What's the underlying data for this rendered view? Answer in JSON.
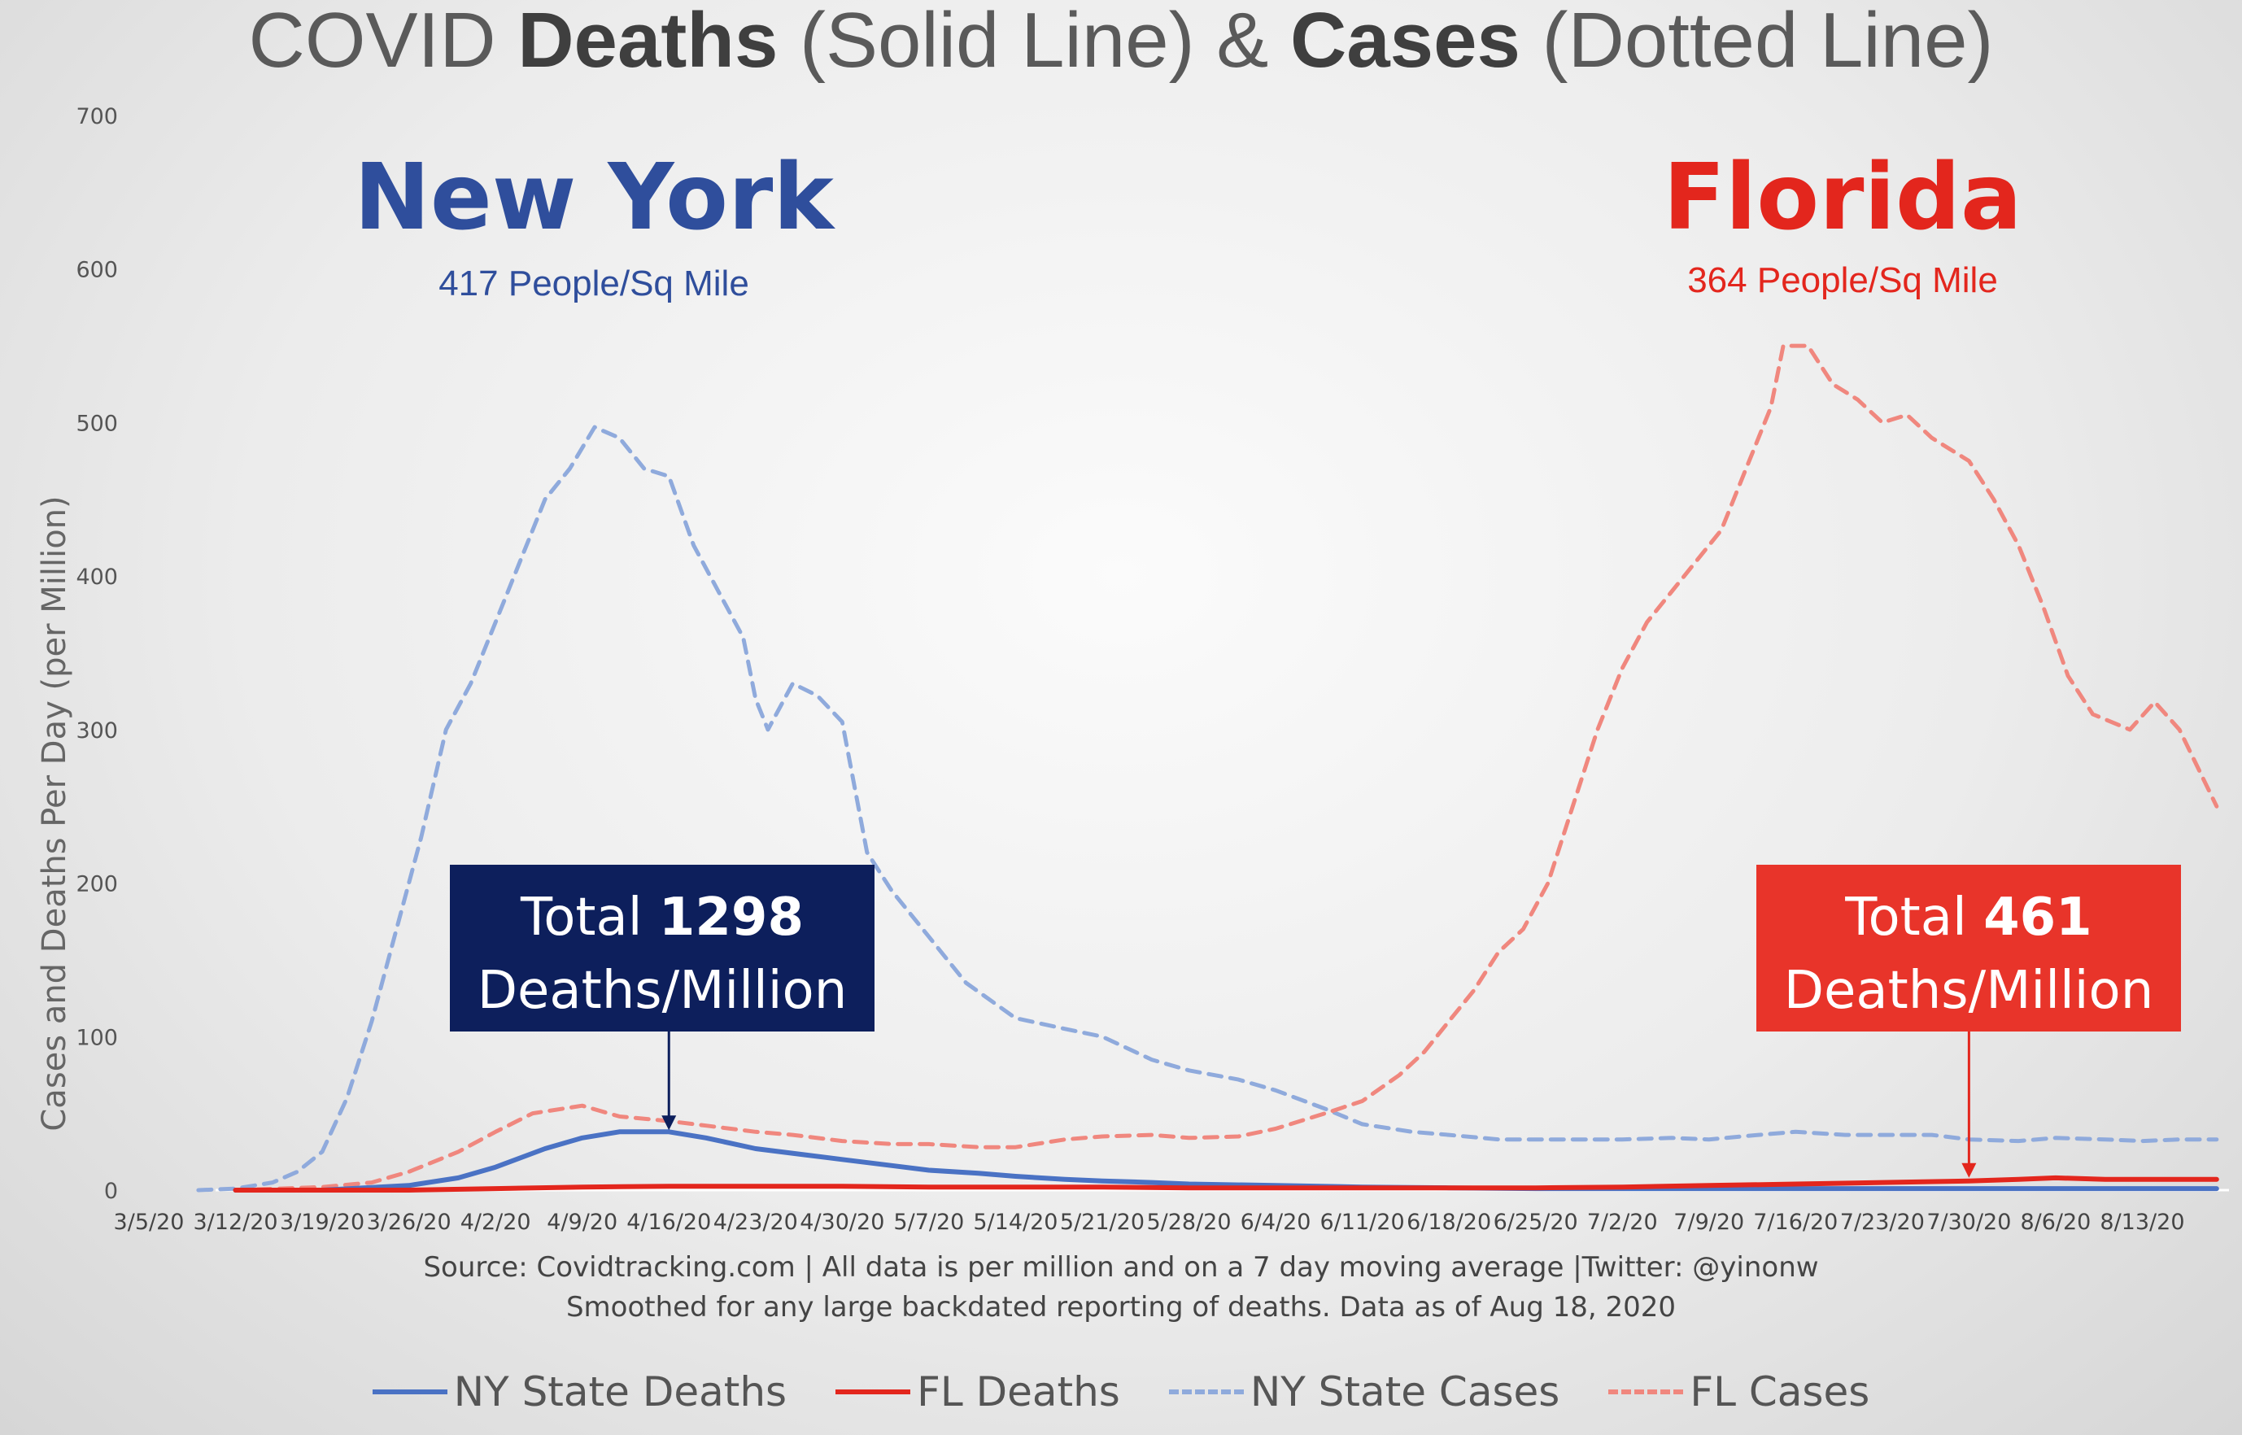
{
  "title": {
    "part1": "COVID ",
    "bold1": "Deaths",
    "part2": " (Solid Line) & ",
    "bold2": "Cases",
    "part3": " (Dotted Line)"
  },
  "annotations": {
    "ny": {
      "name": "New York",
      "density": "417 People/Sq Mile",
      "total_prefix": "Total ",
      "total_value": "1298",
      "total_suffix": "Deaths/Million",
      "color": "#2f4e9c",
      "box_color": "#0d1f5c"
    },
    "fl": {
      "name": "Florida",
      "density": "364 People/Sq Mile",
      "total_prefix": "Total ",
      "total_value": "461",
      "total_suffix": "Deaths/Million",
      "color": "#e3261d",
      "box_color": "#e8342a"
    }
  },
  "source": {
    "line1": "Source: Covidtracking.com | All data is per million and on a 7 day moving average |Twitter: @yinonw",
    "line2": "Smoothed for any large backdated reporting of deaths. Data as of Aug 18, 2020"
  },
  "chart_data": {
    "type": "line",
    "title": "COVID Deaths (Solid Line) & Cases (Dotted Line)",
    "ylabel": "Cases and Deaths Per Day (per Million)",
    "xlabel": "",
    "ylim": [
      0,
      700
    ],
    "yticks": [
      0,
      100,
      200,
      300,
      400,
      500,
      600,
      700
    ],
    "x_range": [
      "3/5/20",
      "8/20/20"
    ],
    "xticks": [
      "3/5/20",
      "3/12/20",
      "3/19/20",
      "3/26/20",
      "4/2/20",
      "4/9/20",
      "4/16/20",
      "4/23/20",
      "4/30/20",
      "5/7/20",
      "5/14/20",
      "5/21/20",
      "5/28/20",
      "6/4/20",
      "6/11/20",
      "6/18/20",
      "6/25/20",
      "7/2/20",
      "7/9/20",
      "7/16/20",
      "7/23/20",
      "7/30/20",
      "8/6/20",
      "8/13/20"
    ],
    "grid": false,
    "legend": "bottom",
    "series": [
      {
        "name": "NY State Deaths",
        "style": "solid",
        "color": "#4a72c4",
        "points": [
          [
            "3/12/20",
            0
          ],
          [
            "3/19/20",
            0
          ],
          [
            "3/26/20",
            3
          ],
          [
            "3/30/20",
            8
          ],
          [
            "4/2/20",
            15
          ],
          [
            "4/6/20",
            27
          ],
          [
            "4/9/20",
            34
          ],
          [
            "4/12/20",
            38
          ],
          [
            "4/16/20",
            38
          ],
          [
            "4/19/20",
            34
          ],
          [
            "4/23/20",
            27
          ],
          [
            "4/27/20",
            23
          ],
          [
            "4/30/20",
            20
          ],
          [
            "5/4/20",
            16
          ],
          [
            "5/7/20",
            13
          ],
          [
            "5/11/20",
            11
          ],
          [
            "5/14/20",
            9
          ],
          [
            "5/18/20",
            7
          ],
          [
            "5/21/20",
            6
          ],
          [
            "5/25/20",
            5
          ],
          [
            "5/28/20",
            4
          ],
          [
            "6/4/20",
            3
          ],
          [
            "6/11/20",
            2
          ],
          [
            "6/18/20",
            1.5
          ],
          [
            "6/25/20",
            1
          ],
          [
            "7/2/20",
            1
          ],
          [
            "7/9/20",
            1
          ],
          [
            "7/16/20",
            1
          ],
          [
            "7/23/20",
            1
          ],
          [
            "7/30/20",
            1
          ],
          [
            "8/6/20",
            1
          ],
          [
            "8/13/20",
            1
          ],
          [
            "8/19/20",
            1
          ]
        ]
      },
      {
        "name": "FL Deaths",
        "style": "solid",
        "color": "#e3261d",
        "points": [
          [
            "3/12/20",
            0
          ],
          [
            "3/26/20",
            0
          ],
          [
            "4/2/20",
            1
          ],
          [
            "4/9/20",
            2
          ],
          [
            "4/16/20",
            2.5
          ],
          [
            "4/23/20",
            2.5
          ],
          [
            "4/30/20",
            2.5
          ],
          [
            "5/7/20",
            2
          ],
          [
            "5/14/20",
            2
          ],
          [
            "5/21/20",
            2
          ],
          [
            "5/28/20",
            1.5
          ],
          [
            "6/4/20",
            1.5
          ],
          [
            "6/11/20",
            1.5
          ],
          [
            "6/18/20",
            1.5
          ],
          [
            "6/25/20",
            1.5
          ],
          [
            "7/2/20",
            2
          ],
          [
            "7/9/20",
            3
          ],
          [
            "7/16/20",
            4
          ],
          [
            "7/23/20",
            5
          ],
          [
            "7/30/20",
            6
          ],
          [
            "8/3/20",
            7
          ],
          [
            "8/6/20",
            8
          ],
          [
            "8/10/20",
            7
          ],
          [
            "8/13/20",
            7
          ],
          [
            "8/19/20",
            7
          ]
        ]
      },
      {
        "name": "NY State Cases",
        "style": "dashed",
        "color": "#8faadc",
        "points": [
          [
            "3/9/20",
            0
          ],
          [
            "3/12/20",
            1
          ],
          [
            "3/15/20",
            5
          ],
          [
            "3/17/20",
            12
          ],
          [
            "3/19/20",
            25
          ],
          [
            "3/21/20",
            60
          ],
          [
            "3/23/20",
            110
          ],
          [
            "3/25/20",
            170
          ],
          [
            "3/27/20",
            230
          ],
          [
            "3/29/20",
            300
          ],
          [
            "3/31/20",
            330
          ],
          [
            "4/2/20",
            370
          ],
          [
            "4/4/20",
            410
          ],
          [
            "4/6/20",
            450
          ],
          [
            "4/8/20",
            470
          ],
          [
            "4/10/20",
            497
          ],
          [
            "4/12/20",
            490
          ],
          [
            "4/14/20",
            470
          ],
          [
            "4/16/20",
            465
          ],
          [
            "4/18/20",
            420
          ],
          [
            "4/20/20",
            390
          ],
          [
            "4/22/20",
            360
          ],
          [
            "4/23/20",
            320
          ],
          [
            "4/24/20",
            300
          ],
          [
            "4/26/20",
            330
          ],
          [
            "4/28/20",
            322
          ],
          [
            "4/30/20",
            305
          ],
          [
            "5/2/20",
            220
          ],
          [
            "5/4/20",
            195
          ],
          [
            "5/7/20",
            165
          ],
          [
            "5/10/20",
            135
          ],
          [
            "5/14/20",
            112
          ],
          [
            "5/18/20",
            105
          ],
          [
            "5/21/20",
            100
          ],
          [
            "5/25/20",
            85
          ],
          [
            "5/28/20",
            78
          ],
          [
            "6/1/20",
            72
          ],
          [
            "6/4/20",
            65
          ],
          [
            "6/8/20",
            53
          ],
          [
            "6/11/20",
            43
          ],
          [
            "6/15/20",
            38
          ],
          [
            "6/18/20",
            36
          ],
          [
            "6/22/20",
            33
          ],
          [
            "6/25/20",
            33
          ],
          [
            "6/29/20",
            33
          ],
          [
            "7/2/20",
            33
          ],
          [
            "7/6/20",
            34
          ],
          [
            "7/9/20",
            33
          ],
          [
            "7/13/20",
            36
          ],
          [
            "7/16/20",
            38
          ],
          [
            "7/20/20",
            36
          ],
          [
            "7/23/20",
            36
          ],
          [
            "7/27/20",
            36
          ],
          [
            "7/30/20",
            33
          ],
          [
            "8/3/20",
            32
          ],
          [
            "8/6/20",
            34
          ],
          [
            "8/10/20",
            33
          ],
          [
            "8/13/20",
            32
          ],
          [
            "8/16/20",
            33
          ],
          [
            "8/19/20",
            33
          ]
        ]
      },
      {
        "name": "FL Cases",
        "style": "dashed",
        "color": "#f0877e",
        "points": [
          [
            "3/12/20",
            0
          ],
          [
            "3/19/20",
            2
          ],
          [
            "3/23/20",
            5
          ],
          [
            "3/26/20",
            12
          ],
          [
            "3/30/20",
            25
          ],
          [
            "4/2/20",
            38
          ],
          [
            "4/5/20",
            50
          ],
          [
            "4/9/20",
            55
          ],
          [
            "4/12/20",
            48
          ],
          [
            "4/16/20",
            45
          ],
          [
            "4/19/20",
            42
          ],
          [
            "4/23/20",
            38
          ],
          [
            "4/26/20",
            36
          ],
          [
            "4/30/20",
            32
          ],
          [
            "5/4/20",
            30
          ],
          [
            "5/7/20",
            30
          ],
          [
            "5/11/20",
            28
          ],
          [
            "5/14/20",
            28
          ],
          [
            "5/18/20",
            33
          ],
          [
            "5/21/20",
            35
          ],
          [
            "5/25/20",
            36
          ],
          [
            "5/28/20",
            34
          ],
          [
            "6/1/20",
            35
          ],
          [
            "6/4/20",
            40
          ],
          [
            "6/8/20",
            50
          ],
          [
            "6/11/20",
            58
          ],
          [
            "6/14/20",
            75
          ],
          [
            "6/16/20",
            90
          ],
          [
            "6/18/20",
            110
          ],
          [
            "6/20/20",
            130
          ],
          [
            "6/22/20",
            155
          ],
          [
            "6/24/20",
            170
          ],
          [
            "6/26/20",
            200
          ],
          [
            "6/28/20",
            250
          ],
          [
            "6/30/20",
            300
          ],
          [
            "7/2/20",
            340
          ],
          [
            "7/4/20",
            370
          ],
          [
            "7/6/20",
            390
          ],
          [
            "7/8/20",
            410
          ],
          [
            "7/10/20",
            430
          ],
          [
            "7/12/20",
            470
          ],
          [
            "7/14/20",
            510
          ],
          [
            "7/15/20",
            550
          ],
          [
            "7/17/20",
            550
          ],
          [
            "7/19/20",
            525
          ],
          [
            "7/21/20",
            515
          ],
          [
            "7/23/20",
            500
          ],
          [
            "7/25/20",
            505
          ],
          [
            "7/27/20",
            490
          ],
          [
            "7/30/20",
            475
          ],
          [
            "8/1/20",
            450
          ],
          [
            "8/3/20",
            420
          ],
          [
            "8/5/20",
            380
          ],
          [
            "8/7/20",
            335
          ],
          [
            "8/9/20",
            310
          ],
          [
            "8/12/20",
            300
          ],
          [
            "8/14/20",
            318
          ],
          [
            "8/16/20",
            300
          ],
          [
            "8/19/20",
            250
          ]
        ]
      }
    ]
  }
}
